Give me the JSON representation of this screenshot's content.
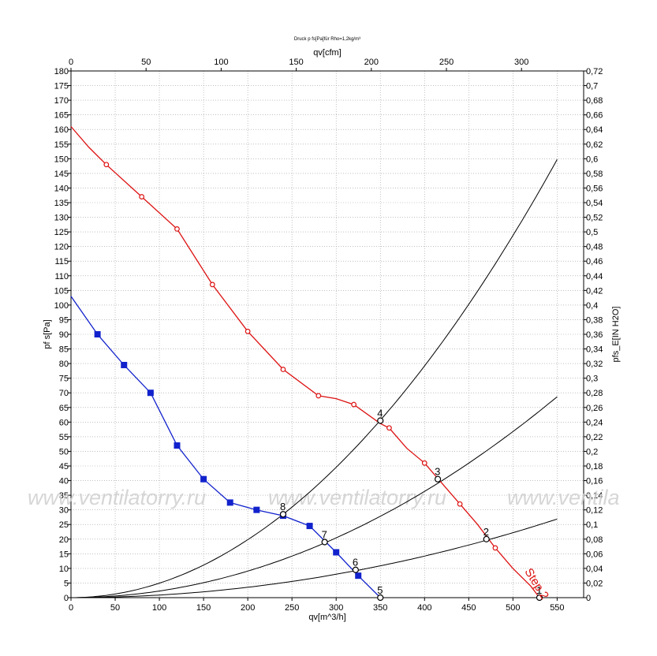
{
  "chart_data": {
    "type": "line",
    "title": "Druck p fs[Pa]für Rho=1,2kg/m³",
    "xlabel": "qv[m^3/h]",
    "x2label": "qv[cfm]",
    "ylabel": "pf s[Pa]",
    "y2label": "pfs_E[IN H2O]",
    "xlim": [
      0,
      580
    ],
    "ylim": [
      0,
      180
    ],
    "x_ticks": [
      0,
      50,
      100,
      150,
      200,
      250,
      300,
      350,
      400,
      450,
      500,
      550
    ],
    "y_ticks": [
      0,
      5,
      10,
      15,
      20,
      25,
      30,
      35,
      40,
      45,
      50,
      55,
      60,
      65,
      70,
      75,
      80,
      85,
      90,
      95,
      100,
      105,
      110,
      115,
      120,
      125,
      130,
      135,
      140,
      145,
      150,
      155,
      160,
      165,
      170,
      175,
      180
    ],
    "x2_ticks": [
      0,
      50,
      100,
      150,
      200,
      250,
      300
    ],
    "y2_ticks": [
      "0",
      "0,02",
      "0,04",
      "0,06",
      "0,08",
      "0,1",
      "0,12",
      "0,14",
      "0,16",
      "0,18",
      "0,2",
      "0,22",
      "0,24",
      "0,26",
      "0,28",
      "0,3",
      "0,32",
      "0,34",
      "0,36",
      "0,38",
      "0,4",
      "0,42",
      "0,44",
      "0,46",
      "0,48",
      "0,5",
      "0,52",
      "0,54",
      "0,56",
      "0,58",
      "0,6",
      "0,62",
      "0,64",
      "0,66",
      "0,68",
      "0,7",
      "0,72"
    ],
    "grid": true,
    "series": [
      {
        "name": "Step 2",
        "color": "#dd1111",
        "marker": "circle",
        "x": [
          0,
          20,
          40,
          80,
          120,
          160,
          200,
          240,
          280,
          300,
          320,
          350,
          360,
          380,
          400,
          420,
          440,
          460,
          480,
          500,
          520,
          530
        ],
        "y": [
          161,
          154,
          148,
          137,
          126,
          107,
          91,
          78,
          69,
          68,
          66,
          59.5,
          58,
          51,
          46,
          39,
          32,
          25,
          17,
          10,
          4,
          0
        ],
        "marker_x": [
          40,
          80,
          120,
          160,
          200,
          240,
          280,
          320,
          360,
          400,
          440,
          480
        ],
        "marker_y": [
          148,
          137,
          126,
          107,
          91,
          78,
          69,
          66,
          58,
          46,
          32,
          17
        ]
      },
      {
        "name": "",
        "color": "#1122cc",
        "marker": "square",
        "x": [
          0,
          30,
          60,
          90,
          120,
          150,
          180,
          210,
          240,
          270,
          300,
          325,
          350
        ],
        "y": [
          103,
          90,
          79.5,
          70,
          52,
          40.5,
          32.5,
          30,
          28,
          24.5,
          15.5,
          7.5,
          0
        ],
        "marker_x": [
          30,
          60,
          90,
          120,
          150,
          180,
          210,
          240,
          270,
          300,
          325
        ],
        "marker_y": [
          90,
          79.5,
          70,
          52,
          40.5,
          32.5,
          30,
          28,
          24.5,
          15.5,
          7.5
        ]
      }
    ],
    "system_curves": [
      {
        "k": 0.000495,
        "x_max": 553
      },
      {
        "k": 0.000227,
        "x_max": 553
      },
      {
        "k": 8.88e-05,
        "x_max": 553
      }
    ],
    "operating_points": [
      {
        "label": "1",
        "x": 530,
        "y": 0
      },
      {
        "label": "2",
        "x": 470,
        "y": 20
      },
      {
        "label": "3",
        "x": 415,
        "y": 40.5
      },
      {
        "label": "4",
        "x": 350,
        "y": 60.5
      },
      {
        "label": "5",
        "x": 350,
        "y": 0
      },
      {
        "label": "6",
        "x": 322,
        "y": 9.5
      },
      {
        "label": "7",
        "x": 287,
        "y": 19
      },
      {
        "label": "8",
        "x": 240,
        "y": 28.5
      }
    ],
    "annotations": [
      "Step 2"
    ]
  },
  "watermark": {
    "text": "www.ventilatorry.ru",
    "text_3": "www.ventila"
  }
}
